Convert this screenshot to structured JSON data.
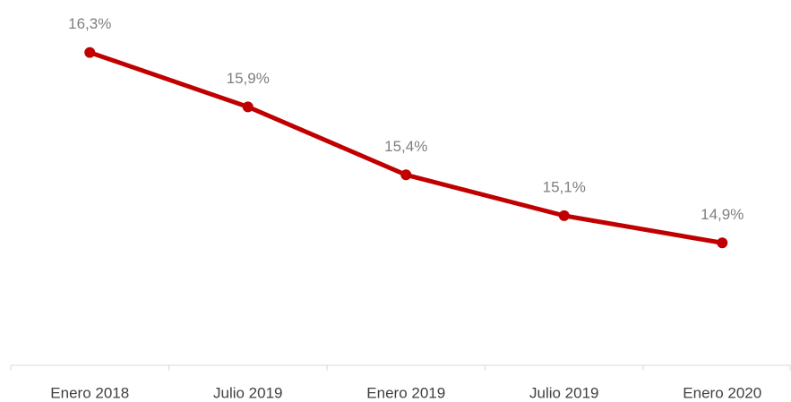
{
  "chart_data": {
    "type": "line",
    "categories": [
      "Enero 2018",
      "Julio 2019",
      "Enero 2019",
      "Julio 2019",
      "Enero 2020"
    ],
    "series": [
      {
        "color": "#c00000",
        "values": [
          16.3,
          15.9,
          15.4,
          15.1,
          14.9
        ],
        "value_labels": [
          "16,3%",
          "15,9%",
          "15,4%",
          "15,1%",
          "14,9%"
        ]
      }
    ],
    "ylim": [
      14,
      16.6
    ]
  }
}
